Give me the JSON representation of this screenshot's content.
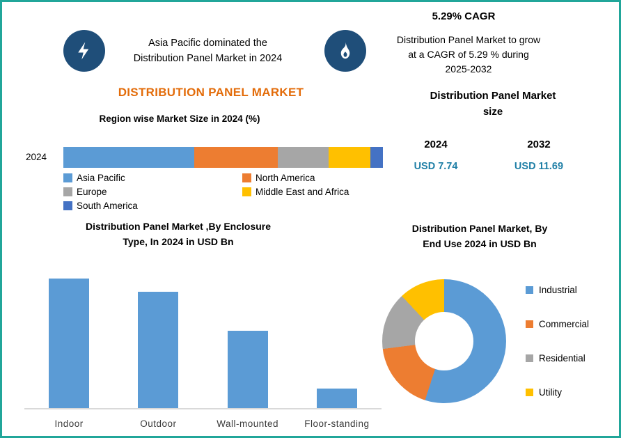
{
  "page": {
    "border_color": "#21A69A",
    "background": "#FFFFFF"
  },
  "highlights": {
    "left": {
      "line1": "Asia Pacific dominated the",
      "line2": "Distribution Panel Market in 2024"
    },
    "right": {
      "cagr": "5.29% CAGR",
      "line1": "Distribution Panel Market to grow",
      "line2": "at a CAGR of 5.29 % during",
      "line3": "2025-2032"
    }
  },
  "main_title": "DISTRIBUTION PANEL MARKET",
  "market_size": {
    "title_line1": "Distribution Panel Market",
    "title_line2": "size",
    "value_color": "#1F7FA6",
    "columns": [
      {
        "year": "2024",
        "value": "USD 7.74"
      },
      {
        "year": "2032",
        "value": "USD 11.69"
      }
    ]
  },
  "chart_data": [
    {
      "id": "region_share",
      "type": "bar",
      "subtype": "horizontal-stacked",
      "title": "Region wise Market Size in 2024 (%)",
      "categories": [
        "2024"
      ],
      "xlim": [
        0,
        100
      ],
      "legend_position": "bottom",
      "series": [
        {
          "name": "Asia Pacific",
          "color": "#5B9BD5",
          "values": [
            41
          ]
        },
        {
          "name": "North America",
          "color": "#ED7D31",
          "values": [
            26
          ]
        },
        {
          "name": "Europe",
          "color": "#A6A6A6",
          "values": [
            16
          ]
        },
        {
          "name": "Middle East and Africa",
          "color": "#FFC000",
          "values": [
            13
          ]
        },
        {
          "name": "South America",
          "color": "#4472C4",
          "values": [
            4
          ]
        }
      ]
    },
    {
      "id": "enclosure_type",
      "type": "bar",
      "title": "Distribution Panel Market ,By Enclosure Type, In 2024 in USD Bn",
      "title_line1": "Distribution Panel Market ,By  Enclosure",
      "title_line2": "Type, In 2024 in USD Bn",
      "categories": [
        "Indoor",
        "Outdoor",
        "Wall-mounted",
        "Floor-standing"
      ],
      "values": [
        3.0,
        2.7,
        1.8,
        0.45
      ],
      "ylim": [
        0,
        3.2
      ],
      "bar_color": "#5B9BD5",
      "grid": false
    },
    {
      "id": "end_use",
      "type": "pie",
      "subtype": "donut",
      "title": "Distribution Panel Market, By End Use 2024 in USD Bn",
      "title_line1": "Distribution Panel Market, By",
      "title_line2": "End Use 2024 in USD Bn",
      "start_angle_deg": 0,
      "legend_position": "right",
      "segments": [
        {
          "label": "Industrial",
          "color": "#5B9BD5",
          "value": 55
        },
        {
          "label": "Commercial",
          "color": "#ED7D31",
          "value": 18
        },
        {
          "label": "Residential",
          "color": "#A6A6A6",
          "value": 15
        },
        {
          "label": "Utility",
          "color": "#FFC000",
          "value": 12
        }
      ]
    }
  ]
}
